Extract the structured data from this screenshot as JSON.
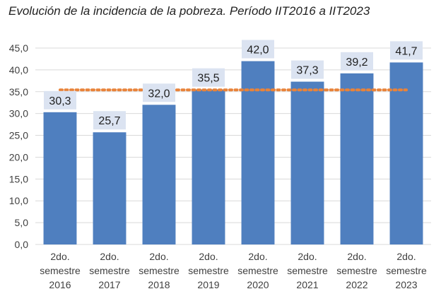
{
  "chart_data": {
    "type": "bar",
    "title": "Evolución de la incidencia de la pobreza. Período IIT2016 a IIT2023",
    "categories": [
      [
        "2do.",
        "semestre",
        "2016"
      ],
      [
        "2do.",
        "semestre",
        "2017"
      ],
      [
        "2do.",
        "semestre",
        "2018"
      ],
      [
        "2do.",
        "semestre",
        "2019"
      ],
      [
        "2do.",
        "semestre",
        "2020"
      ],
      [
        "2do.",
        "semestre",
        "2021"
      ],
      [
        "2do.",
        "semestre",
        "2022"
      ],
      [
        "2do.",
        "semestre",
        "2023"
      ]
    ],
    "values": [
      30.3,
      25.7,
      32.0,
      35.5,
      42.0,
      37.3,
      39.2,
      41.7
    ],
    "value_labels": [
      "30,3",
      "25,7",
      "32,0",
      "35,5",
      "42,0",
      "37,3",
      "39,2",
      "41,7"
    ],
    "reference_line": 35.4,
    "ylim": [
      0,
      45
    ],
    "yticks": [
      "0,0",
      "5,0",
      "10,0",
      "15,0",
      "20,0",
      "25,0",
      "30,0",
      "35,0",
      "40,0",
      "45,0"
    ],
    "xlabel": "",
    "ylabel": "",
    "grid": true,
    "colors": {
      "bar": "#4f7fbf",
      "reference_line": "#e8833a",
      "label_bg": "#dbe3f1",
      "grid": "#d9d9d9",
      "text": "#404040"
    }
  }
}
